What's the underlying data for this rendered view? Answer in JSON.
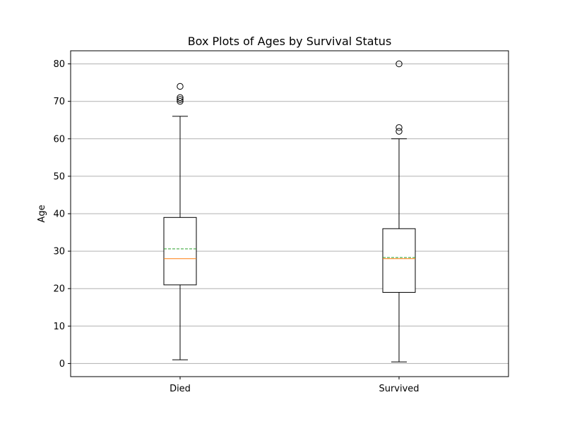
{
  "chart_data": {
    "type": "box",
    "title": "Box Plots of Ages by Survival Status",
    "xlabel": "",
    "ylabel": "Age",
    "ylim": [
      -3.5,
      83.5
    ],
    "yticks": [
      0,
      10,
      20,
      30,
      40,
      50,
      60,
      70,
      80
    ],
    "grid": "y-axis",
    "legend": "none",
    "categories": [
      "Died",
      "Survived"
    ],
    "boxes": [
      {
        "category": "Died",
        "whisker_low": 1,
        "q1": 21,
        "median": 28,
        "mean": 30.6,
        "q3": 39,
        "whisker_high": 66,
        "outliers": [
          70,
          70.5,
          71,
          74
        ]
      },
      {
        "category": "Survived",
        "whisker_low": 0.42,
        "q1": 19,
        "median": 28,
        "mean": 28.3,
        "q3": 36,
        "whisker_high": 60,
        "outliers": [
          62,
          63,
          80
        ]
      }
    ],
    "colors": {
      "median": "#ff7f0e",
      "mean": "#2ca02c",
      "box": "#000000",
      "grid": "#b0b0b0"
    }
  }
}
